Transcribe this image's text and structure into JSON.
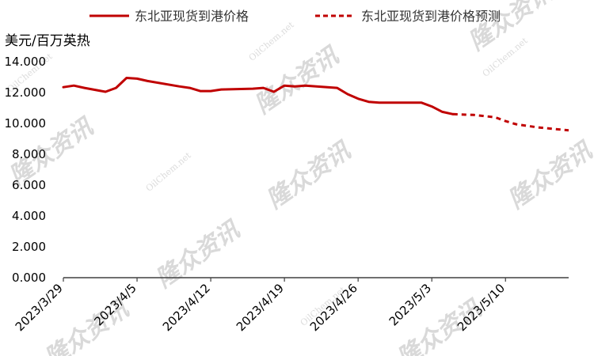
{
  "chart_data": {
    "type": "line",
    "ylabel": "美元/百万英热",
    "ylim": [
      0,
      14
    ],
    "yticks": [
      "0.000",
      "2.000",
      "4.000",
      "6.000",
      "8.000",
      "10.000",
      "12.000",
      "14.000"
    ],
    "xlim": [
      "2023/3/29",
      "2023/5/16"
    ],
    "xticks": [
      "2023/3/29",
      "2023/4/5",
      "2023/4/12",
      "2023/4/19",
      "2023/4/26",
      "2023/5/3",
      "2023/5/10"
    ],
    "legend_position": "top",
    "series": [
      {
        "name": "东北亚现货到港价格",
        "color": "#c00000",
        "style": "solid",
        "points": [
          {
            "x": "2023/3/29",
            "y": 12.35
          },
          {
            "x": "2023/3/30",
            "y": 12.45
          },
          {
            "x": "2023/3/31",
            "y": 12.3
          },
          {
            "x": "2023/4/2",
            "y": 12.05
          },
          {
            "x": "2023/4/3",
            "y": 12.3
          },
          {
            "x": "2023/4/4",
            "y": 12.95
          },
          {
            "x": "2023/4/5",
            "y": 12.9
          },
          {
            "x": "2023/4/6",
            "y": 12.75
          },
          {
            "x": "2023/4/9",
            "y": 12.4
          },
          {
            "x": "2023/4/10",
            "y": 12.3
          },
          {
            "x": "2023/4/11",
            "y": 12.1
          },
          {
            "x": "2023/4/12",
            "y": 12.1
          },
          {
            "x": "2023/4/13",
            "y": 12.2
          },
          {
            "x": "2023/4/16",
            "y": 12.25
          },
          {
            "x": "2023/4/17",
            "y": 12.3
          },
          {
            "x": "2023/4/18",
            "y": 12.05
          },
          {
            "x": "2023/4/19",
            "y": 12.45
          },
          {
            "x": "2023/4/20",
            "y": 12.4
          },
          {
            "x": "2023/4/21",
            "y": 12.45
          },
          {
            "x": "2023/4/24",
            "y": 12.3
          },
          {
            "x": "2023/4/25",
            "y": 11.9
          },
          {
            "x": "2023/4/26",
            "y": 11.6
          },
          {
            "x": "2023/4/27",
            "y": 11.4
          },
          {
            "x": "2023/4/28",
            "y": 11.35
          },
          {
            "x": "2023/5/2",
            "y": 11.35
          },
          {
            "x": "2023/5/3",
            "y": 11.1
          },
          {
            "x": "2023/5/4",
            "y": 10.75
          },
          {
            "x": "2023/5/5",
            "y": 10.6
          }
        ]
      },
      {
        "name": "东北亚现货到港价格预测",
        "color": "#c00000",
        "style": "dashed",
        "points": [
          {
            "x": "2023/5/5",
            "y": 10.6
          },
          {
            "x": "2023/5/7",
            "y": 10.55
          },
          {
            "x": "2023/5/9",
            "y": 10.4
          },
          {
            "x": "2023/5/10",
            "y": 10.15
          },
          {
            "x": "2023/5/11",
            "y": 9.95
          },
          {
            "x": "2023/5/13",
            "y": 9.75
          },
          {
            "x": "2023/5/16",
            "y": 9.55
          }
        ]
      }
    ]
  },
  "watermark": {
    "cn": "隆众资讯",
    "en": "OilChem.net"
  }
}
